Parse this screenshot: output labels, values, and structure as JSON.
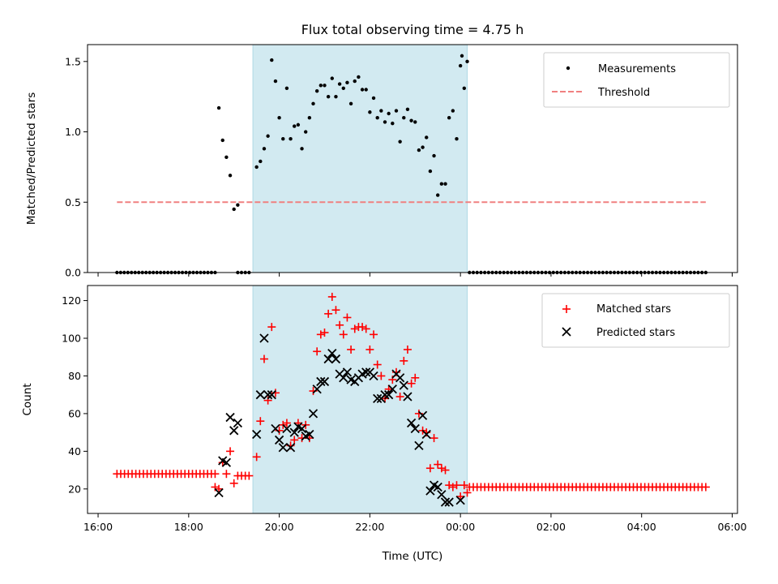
{
  "title": "Flux total observing time = 4.75 h",
  "xlabel": "Time (UTC)",
  "x_ticks": [
    "16:00",
    "18:00",
    "20:00",
    "22:00",
    "00:00",
    "02:00",
    "04:00",
    "06:00"
  ],
  "colors": {
    "shade": "#add8e6",
    "measurements": "#000000",
    "threshold": "#f08080",
    "matched": "#ff0000",
    "predicted": "#000000"
  },
  "chart_data": [
    {
      "type": "scatter",
      "title": "Flux total observing time = 4.75 h",
      "xlabel": "",
      "ylabel": "Matched/Predicted stars",
      "xlim": [
        "2023-01-01T15:46",
        "2023-01-02T06:07"
      ],
      "ylim": [
        0,
        1.62
      ],
      "y_ticks": [
        "0.0",
        "0.5",
        "1.0",
        "1.5"
      ],
      "shaded_region": [
        "2023-01-01T19:25",
        "2023-01-02T00:09"
      ],
      "legend": {
        "position": "top-right",
        "entries": [
          "Measurements",
          "Threshold"
        ]
      },
      "threshold": {
        "name": "Threshold",
        "value": 0.5,
        "x": [
          "2023-01-01T16:25",
          "2023-01-02T05:25"
        ]
      },
      "series": [
        {
          "name": "Measurements",
          "zero_ranges": [
            [
              "2023-01-01T16:25",
              "2023-01-01T18:35",
              28
            ],
            [
              "2023-01-01T19:05",
              "2023-01-01T19:20",
              4
            ],
            [
              "2023-01-02T00:12",
              "2023-01-02T05:25",
              63
            ]
          ],
          "points": [
            [
              "2023-01-01T18:40",
              1.17
            ],
            [
              "2023-01-01T18:45",
              0.94
            ],
            [
              "2023-01-01T18:50",
              0.82
            ],
            [
              "2023-01-01T18:55",
              0.69
            ],
            [
              "2023-01-01T19:00",
              0.45
            ],
            [
              "2023-01-01T19:05",
              0.48
            ],
            [
              "2023-01-01T19:30",
              0.75
            ],
            [
              "2023-01-01T19:35",
              0.79
            ],
            [
              "2023-01-01T19:40",
              0.88
            ],
            [
              "2023-01-01T19:45",
              0.97
            ],
            [
              "2023-01-01T19:50",
              1.51
            ],
            [
              "2023-01-01T19:55",
              1.36
            ],
            [
              "2023-01-01T20:00",
              1.1
            ],
            [
              "2023-01-01T20:05",
              0.95
            ],
            [
              "2023-01-01T20:10",
              1.31
            ],
            [
              "2023-01-01T20:15",
              0.95
            ],
            [
              "2023-01-01T20:20",
              1.04
            ],
            [
              "2023-01-01T20:25",
              1.05
            ],
            [
              "2023-01-01T20:30",
              0.88
            ],
            [
              "2023-01-01T20:35",
              1.0
            ],
            [
              "2023-01-01T20:40",
              1.1
            ],
            [
              "2023-01-01T20:45",
              1.2
            ],
            [
              "2023-01-01T20:50",
              1.29
            ],
            [
              "2023-01-01T20:55",
              1.33
            ],
            [
              "2023-01-01T21:00",
              1.33
            ],
            [
              "2023-01-01T21:05",
              1.25
            ],
            [
              "2023-01-01T21:10",
              1.38
            ],
            [
              "2023-01-01T21:15",
              1.25
            ],
            [
              "2023-01-01T21:20",
              1.34
            ],
            [
              "2023-01-01T21:25",
              1.31
            ],
            [
              "2023-01-01T21:30",
              1.35
            ],
            [
              "2023-01-01T21:35",
              1.2
            ],
            [
              "2023-01-01T21:40",
              1.36
            ],
            [
              "2023-01-01T21:45",
              1.39
            ],
            [
              "2023-01-01T21:50",
              1.3
            ],
            [
              "2023-01-01T21:55",
              1.3
            ],
            [
              "2023-01-01T22:00",
              1.14
            ],
            [
              "2023-01-01T22:05",
              1.24
            ],
            [
              "2023-01-01T22:10",
              1.1
            ],
            [
              "2023-01-01T22:15",
              1.15
            ],
            [
              "2023-01-01T22:20",
              1.07
            ],
            [
              "2023-01-01T22:25",
              1.13
            ],
            [
              "2023-01-01T22:30",
              1.06
            ],
            [
              "2023-01-01T22:35",
              1.15
            ],
            [
              "2023-01-01T22:40",
              0.93
            ],
            [
              "2023-01-01T22:45",
              1.1
            ],
            [
              "2023-01-01T22:50",
              1.16
            ],
            [
              "2023-01-01T22:55",
              1.08
            ],
            [
              "2023-01-01T23:00",
              1.07
            ],
            [
              "2023-01-01T23:05",
              0.87
            ],
            [
              "2023-01-01T23:10",
              0.89
            ],
            [
              "2023-01-01T23:15",
              0.96
            ],
            [
              "2023-01-01T23:20",
              0.72
            ],
            [
              "2023-01-01T23:25",
              0.83
            ],
            [
              "2023-01-01T23:30",
              0.55
            ],
            [
              "2023-01-01T23:35",
              0.63
            ],
            [
              "2023-01-01T23:40",
              0.63
            ],
            [
              "2023-01-01T23:45",
              1.1
            ],
            [
              "2023-01-01T23:50",
              1.15
            ],
            [
              "2023-01-01T23:55",
              0.95
            ],
            [
              "2023-01-02T00:00",
              1.47
            ],
            [
              "2023-01-02T00:02",
              1.54
            ],
            [
              "2023-01-02T00:05",
              1.31
            ],
            [
              "2023-01-02T00:09",
              1.5
            ]
          ]
        }
      ]
    },
    {
      "type": "scatter",
      "title": "",
      "xlabel": "Time (UTC)",
      "ylabel": "Count",
      "xlim": [
        "2023-01-01T15:46",
        "2023-01-02T06:07"
      ],
      "ylim": [
        7,
        128
      ],
      "y_ticks": [
        "20",
        "40",
        "60",
        "80",
        "100",
        "120"
      ],
      "shaded_region": [
        "2023-01-01T19:25",
        "2023-01-02T00:09"
      ],
      "legend": {
        "position": "top-right",
        "entries": [
          "Matched stars",
          "Predicted stars"
        ]
      },
      "series": [
        {
          "name": "Matched stars",
          "constant_ranges": [
            [
              "2023-01-01T16:25",
              "2023-01-01T18:35",
              28,
              27
            ],
            [
              "2023-01-02T00:12",
              "2023-01-02T05:25",
              21,
              63
            ]
          ],
          "points": [
            [
              "2023-01-01T18:35",
              21
            ],
            [
              "2023-01-01T18:40",
              20
            ],
            [
              "2023-01-01T18:45",
              34
            ],
            [
              "2023-01-01T18:50",
              28
            ],
            [
              "2023-01-01T18:55",
              40
            ],
            [
              "2023-01-01T19:00",
              23
            ],
            [
              "2023-01-01T19:05",
              27
            ],
            [
              "2023-01-01T19:10",
              27
            ],
            [
              "2023-01-01T19:15",
              27
            ],
            [
              "2023-01-01T19:20",
              27
            ],
            [
              "2023-01-01T19:30",
              37
            ],
            [
              "2023-01-01T19:35",
              56
            ],
            [
              "2023-01-01T19:40",
              89
            ],
            [
              "2023-01-01T19:45",
              67
            ],
            [
              "2023-01-01T19:50",
              106
            ],
            [
              "2023-01-01T19:55",
              71
            ],
            [
              "2023-01-01T20:00",
              51
            ],
            [
              "2023-01-01T20:05",
              54
            ],
            [
              "2023-01-01T20:10",
              55
            ],
            [
              "2023-01-01T20:15",
              43
            ],
            [
              "2023-01-01T20:20",
              46
            ],
            [
              "2023-01-01T20:25",
              55
            ],
            [
              "2023-01-01T20:30",
              47
            ],
            [
              "2023-01-01T20:35",
              54
            ],
            [
              "2023-01-01T20:40",
              47
            ],
            [
              "2023-01-01T20:45",
              72
            ],
            [
              "2023-01-01T20:50",
              93
            ],
            [
              "2023-01-01T20:55",
              102
            ],
            [
              "2023-01-01T21:00",
              103
            ],
            [
              "2023-01-01T21:05",
              113
            ],
            [
              "2023-01-01T21:10",
              122
            ],
            [
              "2023-01-01T21:15",
              115
            ],
            [
              "2023-01-01T21:20",
              107
            ],
            [
              "2023-01-01T21:25",
              102
            ],
            [
              "2023-01-01T21:30",
              111
            ],
            [
              "2023-01-01T21:35",
              94
            ],
            [
              "2023-01-01T21:40",
              105
            ],
            [
              "2023-01-01T21:45",
              106
            ],
            [
              "2023-01-01T21:50",
              106
            ],
            [
              "2023-01-01T21:55",
              105
            ],
            [
              "2023-01-01T22:00",
              94
            ],
            [
              "2023-01-01T22:05",
              102
            ],
            [
              "2023-01-01T22:10",
              86
            ],
            [
              "2023-01-01T22:15",
              80
            ],
            [
              "2023-01-01T22:20",
              68
            ],
            [
              "2023-01-01T22:25",
              73
            ],
            [
              "2023-01-01T22:30",
              78
            ],
            [
              "2023-01-01T22:35",
              82
            ],
            [
              "2023-01-01T22:40",
              69
            ],
            [
              "2023-01-01T22:45",
              88
            ],
            [
              "2023-01-01T22:50",
              94
            ],
            [
              "2023-01-01T22:55",
              76
            ],
            [
              "2023-01-01T23:00",
              79
            ],
            [
              "2023-01-01T23:05",
              60
            ],
            [
              "2023-01-01T23:10",
              51
            ],
            [
              "2023-01-01T23:15",
              50
            ],
            [
              "2023-01-01T23:20",
              31
            ],
            [
              "2023-01-01T23:25",
              47
            ],
            [
              "2023-01-01T23:30",
              33
            ],
            [
              "2023-01-01T23:35",
              31
            ],
            [
              "2023-01-01T23:40",
              30
            ],
            [
              "2023-01-01T23:45",
              22
            ],
            [
              "2023-01-01T23:50",
              21
            ],
            [
              "2023-01-01T23:55",
              22
            ],
            [
              "2023-01-02T00:00",
              16
            ],
            [
              "2023-01-02T00:05",
              22
            ],
            [
              "2023-01-02T00:09",
              18
            ]
          ]
        },
        {
          "name": "Predicted stars",
          "points": [
            [
              "2023-01-01T18:40",
              18
            ],
            [
              "2023-01-01T18:45",
              35
            ],
            [
              "2023-01-01T18:50",
              34
            ],
            [
              "2023-01-01T18:55",
              58
            ],
            [
              "2023-01-01T19:00",
              51
            ],
            [
              "2023-01-01T19:05",
              55
            ],
            [
              "2023-01-01T19:30",
              49
            ],
            [
              "2023-01-01T19:35",
              70
            ],
            [
              "2023-01-01T19:40",
              100
            ],
            [
              "2023-01-01T19:45",
              70
            ],
            [
              "2023-01-01T19:50",
              70
            ],
            [
              "2023-01-01T19:55",
              52
            ],
            [
              "2023-01-01T20:00",
              46
            ],
            [
              "2023-01-01T20:05",
              42
            ],
            [
              "2023-01-01T20:10",
              52
            ],
            [
              "2023-01-01T20:15",
              42
            ],
            [
              "2023-01-01T20:20",
              50
            ],
            [
              "2023-01-01T20:25",
              53
            ],
            [
              "2023-01-01T20:30",
              52
            ],
            [
              "2023-01-01T20:35",
              48
            ],
            [
              "2023-01-01T20:40",
              49
            ],
            [
              "2023-01-01T20:45",
              60
            ],
            [
              "2023-01-01T20:50",
              73
            ],
            [
              "2023-01-01T20:55",
              77
            ],
            [
              "2023-01-01T21:00",
              77
            ],
            [
              "2023-01-01T21:05",
              89
            ],
            [
              "2023-01-01T21:10",
              92
            ],
            [
              "2023-01-01T21:15",
              89
            ],
            [
              "2023-01-01T21:20",
              81
            ],
            [
              "2023-01-01T21:25",
              79
            ],
            [
              "2023-01-01T21:30",
              82
            ],
            [
              "2023-01-01T21:35",
              78
            ],
            [
              "2023-01-01T21:40",
              77
            ],
            [
              "2023-01-01T21:45",
              79
            ],
            [
              "2023-01-01T21:50",
              81
            ],
            [
              "2023-01-01T21:55",
              82
            ],
            [
              "2023-01-01T22:00",
              82
            ],
            [
              "2023-01-01T22:05",
              80
            ],
            [
              "2023-01-01T22:10",
              68
            ],
            [
              "2023-01-01T22:15",
              68
            ],
            [
              "2023-01-01T22:20",
              70
            ],
            [
              "2023-01-01T22:25",
              70
            ],
            [
              "2023-01-01T22:30",
              73
            ],
            [
              "2023-01-01T22:35",
              81
            ],
            [
              "2023-01-01T22:40",
              79
            ],
            [
              "2023-01-01T22:45",
              75
            ],
            [
              "2023-01-01T22:50",
              69
            ],
            [
              "2023-01-01T22:55",
              55
            ],
            [
              "2023-01-01T23:00",
              52
            ],
            [
              "2023-01-01T23:05",
              43
            ],
            [
              "2023-01-01T23:10",
              59
            ],
            [
              "2023-01-01T23:15",
              49
            ],
            [
              "2023-01-01T23:20",
              19
            ],
            [
              "2023-01-01T23:25",
              22
            ],
            [
              "2023-01-01T23:30",
              21
            ],
            [
              "2023-01-01T23:35",
              17
            ],
            [
              "2023-01-01T23:40",
              13
            ],
            [
              "2023-01-01T23:45",
              13
            ],
            [
              "2023-01-02T00:00",
              14
            ]
          ]
        }
      ]
    }
  ]
}
